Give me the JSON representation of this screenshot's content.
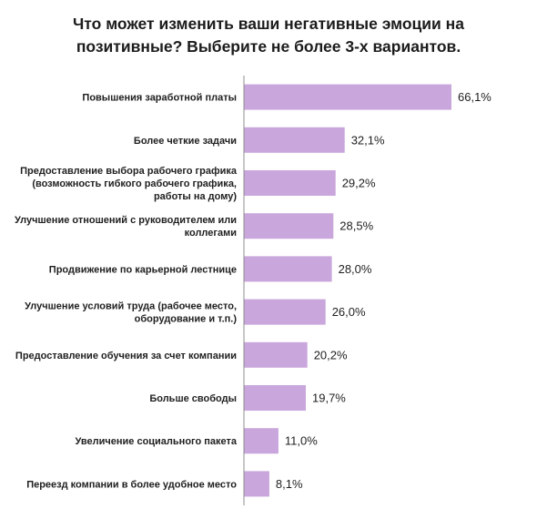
{
  "chart_data": {
    "type": "bar",
    "orientation": "horizontal",
    "title_lines": [
      "Что может изменить ваши негативные эмоции на",
      "позитивные? Выберите не более 3-х вариантов."
    ],
    "categories": [
      [
        "Повышения заработной платы"
      ],
      [
        "Более четкие задачи"
      ],
      [
        "Предоставление выбора рабочего графика",
        "(возможность гибкого рабочего графика,",
        "работы на дому)"
      ],
      [
        "Улучшение отношений с руководителем или",
        "коллегами"
      ],
      [
        "Продвижение по карьерной лестнице"
      ],
      [
        "Улучшение условий труда (рабочее место,",
        "оборудование и т.п.)"
      ],
      [
        "Предоставление обучения за счет компании"
      ],
      [
        "Больше свободы"
      ],
      [
        "Увеличение социального пакета"
      ],
      [
        "Переезд компании в более удобное место"
      ]
    ],
    "values": [
      66.1,
      32.1,
      29.2,
      28.5,
      28.0,
      26.0,
      20.2,
      19.7,
      11.0,
      8.1
    ],
    "value_labels": [
      "66,1%",
      "32,1%",
      "29,2%",
      "28,5%",
      "28,0%",
      "26,0%",
      "20,2%",
      "19,7%",
      "11,0%",
      "8,1%"
    ],
    "xlim": [
      0,
      70
    ],
    "bar_color": "#c9a6dc",
    "grid": false,
    "legend": "none"
  }
}
